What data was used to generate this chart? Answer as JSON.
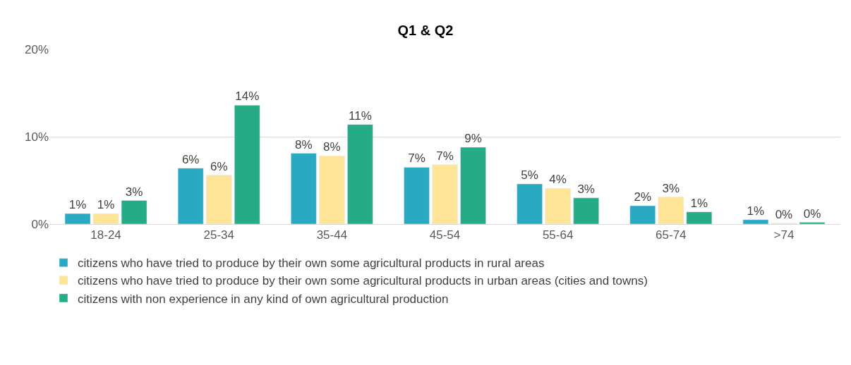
{
  "chart_data": {
    "type": "bar",
    "title": "Q1 & Q2",
    "categories": [
      "18-24",
      "25-34",
      "35-44",
      "45-54",
      "55-64",
      "65-74",
      ">74"
    ],
    "series": [
      {
        "name": "citizens who have tried to produce by their own some agricultural products in rural areas",
        "color": "#2aaac2",
        "values": [
          1.2,
          6.4,
          8.1,
          6.5,
          4.6,
          2.1,
          0.5
        ],
        "value_labels": [
          "1%",
          "6%",
          "8%",
          "7%",
          "5%",
          "2%",
          "1%"
        ]
      },
      {
        "name": "citizens who have tried to produce by their own some agricultural products in urban areas (cities and towns)",
        "color": "#fee497",
        "values": [
          1.2,
          5.6,
          7.8,
          6.8,
          4.1,
          3.1,
          0.1
        ],
        "value_labels": [
          "1%",
          "6%",
          "8%",
          "7%",
          "4%",
          "3%",
          "0%"
        ]
      },
      {
        "name": "citizens with non experience in any kind of own agricultural production",
        "color": "#26ab87",
        "values": [
          2.7,
          13.6,
          11.4,
          8.8,
          3.0,
          1.4,
          0.2
        ],
        "value_labels": [
          "3%",
          "14%",
          "11%",
          "9%",
          "3%",
          "1%",
          "0%"
        ]
      }
    ],
    "ylim": [
      0,
      20
    ],
    "yticks": [
      {
        "value": 0,
        "label": "0%"
      },
      {
        "value": 10,
        "label": "10%"
      },
      {
        "value": 20,
        "label": "20%"
      }
    ],
    "grid": "y",
    "legend": "bottom"
  }
}
